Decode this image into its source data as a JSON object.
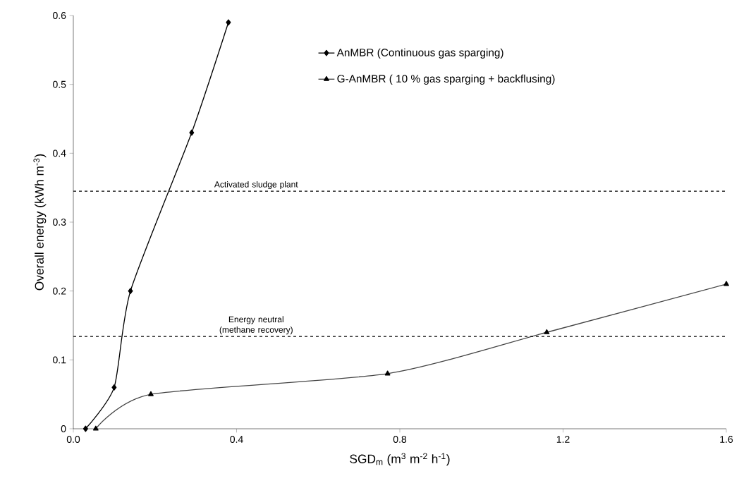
{
  "chart_data": {
    "type": "line",
    "xlabel": "SGD$_{m}$ (m$^{3}$ m$^{-2}$ h$^{-1}$)",
    "ylabel": "Overall energy (kWh m$^{-3}$)",
    "series": [
      {
        "name": "AnMBR (Continuous gas sparging)",
        "color": "#000000",
        "marker": "diamond",
        "x": [
          0.03,
          0.1,
          0.14,
          0.29,
          0.38
        ],
        "values": [
          0,
          0.06,
          0.2,
          0.43,
          0.59
        ]
      },
      {
        "name": "G-AnMBR ( 10 % gas sparging + backflusing)",
        "color": "#444444",
        "marker": "triangle",
        "x": [
          0.055,
          0.19,
          0.77,
          1.16,
          1.6
        ],
        "values": [
          0,
          0.05,
          0.08,
          0.14,
          0.21
        ]
      }
    ],
    "xlim": [
      0,
      1.6
    ],
    "ylim": [
      0,
      0.6
    ],
    "xticks": [
      {
        "value": 0,
        "label": "0.0"
      },
      0.4,
      0.8,
      1.2,
      1.6
    ],
    "yticks": [
      0,
      0.1,
      0.2,
      0.3,
      0.4,
      0.5,
      0.6
    ],
    "ref_lines": [
      {
        "axis": "y",
        "value": 0.345,
        "label": "Activated sludge plant",
        "line_style": "dashed"
      },
      {
        "axis": "y",
        "value": 0.134,
        "label": "Energy neutral (methane recovery)",
        "line_style": "dashed"
      }
    ],
    "grid": false,
    "legend": "top right"
  }
}
